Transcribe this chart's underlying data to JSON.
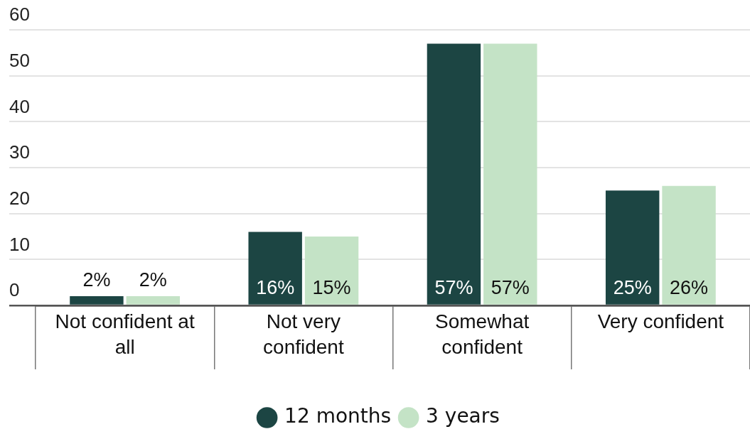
{
  "chart_data": {
    "type": "bar",
    "categories": [
      "Not confident at all",
      "Not very confident",
      "Somewhat confident",
      "Very confident"
    ],
    "series": [
      {
        "name": "12 months",
        "color": "#1c4543",
        "values": [
          2,
          16,
          57,
          25
        ],
        "value_labels": [
          "2%",
          "16%",
          "57%",
          "25%"
        ]
      },
      {
        "name": "3 years",
        "color": "#c4e3c6",
        "values": [
          2,
          15,
          57,
          26
        ],
        "value_labels": [
          "2%",
          "15%",
          "57%",
          "26%"
        ]
      }
    ],
    "ylim": [
      0,
      60
    ],
    "yticks": [
      0,
      10,
      20,
      30,
      40,
      50,
      60
    ],
    "grid": "y",
    "legend": "bottom"
  }
}
